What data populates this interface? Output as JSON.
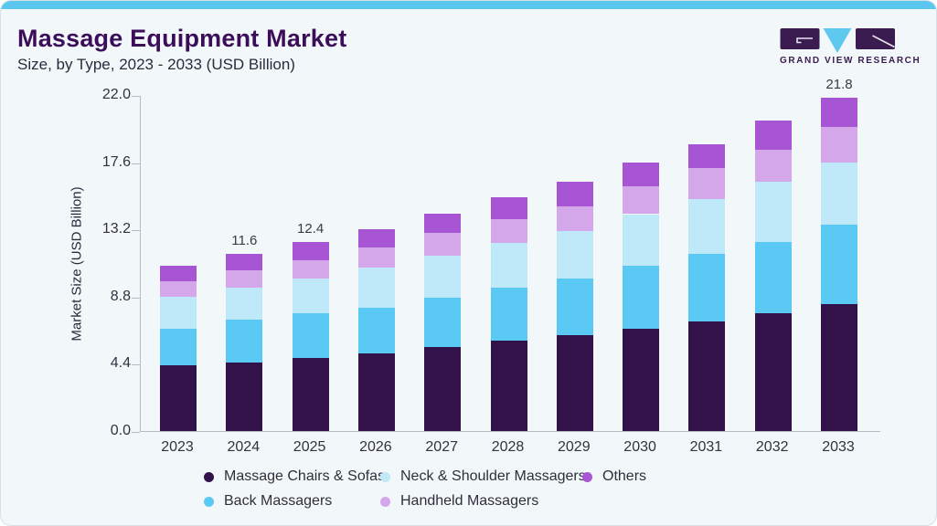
{
  "header": {
    "title": "Massage Equipment Market",
    "subtitle": "Size, by Type, 2023 - 2033 (USD Billion)",
    "logo_text": "GRAND VIEW RESEARCH"
  },
  "colors": {
    "accent_strip": "#5bc7ef",
    "card_background": "#f2f7fa",
    "card_border": "#d8e0e6",
    "title_text": "#3c0e5a",
    "body_text": "#33323e",
    "axis_line": "#b6bcc2",
    "logo_purple": "#3b1c50",
    "logo_blue": "#5fc8ef"
  },
  "chart_data": {
    "type": "bar",
    "stacked": true,
    "title": "Massage Equipment Market Size, by Type, 2023 - 2033 (USD Billion)",
    "categories": [
      "2023",
      "2024",
      "2025",
      "2026",
      "2027",
      "2028",
      "2029",
      "2030",
      "2031",
      "2032",
      "2033"
    ],
    "series": [
      {
        "name": "Massage Chairs & Sofas",
        "color": "#331149",
        "values": [
          4.3,
          4.5,
          4.8,
          5.1,
          5.5,
          5.9,
          6.3,
          6.7,
          7.2,
          7.7,
          8.3
        ]
      },
      {
        "name": "Back Massagers",
        "color": "#5ac9f3",
        "values": [
          2.4,
          2.8,
          2.9,
          3.0,
          3.2,
          3.5,
          3.7,
          4.1,
          4.4,
          4.7,
          5.2
        ]
      },
      {
        "name": "Neck & Shoulder Massagers",
        "color": "#bfe9f9",
        "values": [
          2.1,
          2.1,
          2.3,
          2.6,
          2.8,
          2.9,
          3.1,
          3.4,
          3.6,
          3.9,
          4.1
        ]
      },
      {
        "name": "Handheld Massagers",
        "color": "#d3a7ea",
        "values": [
          1.0,
          1.1,
          1.2,
          1.3,
          1.5,
          1.6,
          1.6,
          1.8,
          2.0,
          2.1,
          2.3
        ]
      },
      {
        "name": "Others",
        "color": "#a855d5",
        "values": [
          1.0,
          1.1,
          1.2,
          1.2,
          1.2,
          1.4,
          1.6,
          1.6,
          1.6,
          1.9,
          1.9
        ]
      }
    ],
    "totals": [
      10.8,
      11.6,
      12.4,
      13.2,
      14.2,
      15.3,
      16.3,
      17.6,
      18.8,
      20.3,
      21.8
    ],
    "total_labels_shown": {
      "2024": "11.6",
      "2025": "12.4",
      "2033": "21.8"
    },
    "ylabel": "Market Size (USD Billion)",
    "xlabel": "",
    "y_ticks": [
      "0.0",
      "4.4",
      "8.8",
      "13.2",
      "17.6",
      "22.0"
    ],
    "ylim": [
      0,
      22
    ],
    "grid": false,
    "legend_position": "bottom",
    "legend_rows": [
      [
        "Massage Chairs & Sofas",
        "Neck & Shoulder Massagers",
        "Others"
      ],
      [
        "Back Massagers",
        "Handheld Massagers"
      ]
    ]
  }
}
